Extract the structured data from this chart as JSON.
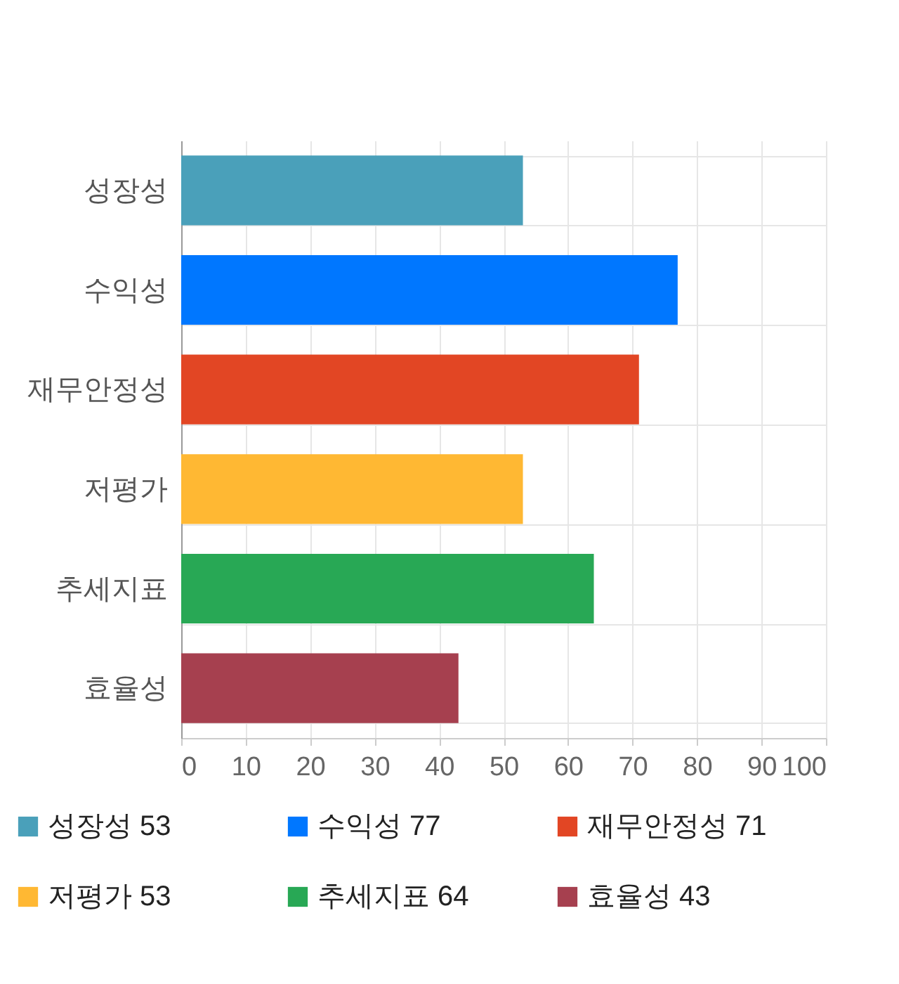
{
  "chart_data": {
    "type": "bar",
    "orientation": "horizontal",
    "categories": [
      "성장성",
      "수익성",
      "재무안정성",
      "저평가",
      "추세지표",
      "효율성"
    ],
    "series": [
      {
        "name": "성장성 53",
        "color": "#4aa0ba",
        "values": [
          53,
          null,
          null,
          null,
          null,
          null
        ]
      },
      {
        "name": "수익성 77",
        "color": "#0077ff",
        "values": [
          null,
          77,
          null,
          null,
          null,
          null
        ]
      },
      {
        "name": "재무안정성 71",
        "color": "#e24624",
        "values": [
          null,
          null,
          71,
          null,
          null,
          null
        ]
      },
      {
        "name": "저평가 53",
        "color": "#ffb833",
        "values": [
          null,
          null,
          null,
          53,
          null,
          null
        ]
      },
      {
        "name": "추세지표 64",
        "color": "#28a855",
        "values": [
          null,
          null,
          null,
          null,
          64,
          null
        ]
      },
      {
        "name": "효율성 43",
        "color": "#a6404f",
        "values": [
          null,
          null,
          null,
          null,
          null,
          43
        ]
      }
    ],
    "xlim": [
      0,
      100
    ],
    "xticks": [
      0,
      10,
      20,
      30,
      40,
      50,
      60,
      70,
      80,
      90,
      100
    ],
    "grid": true,
    "legend": "bottom"
  }
}
